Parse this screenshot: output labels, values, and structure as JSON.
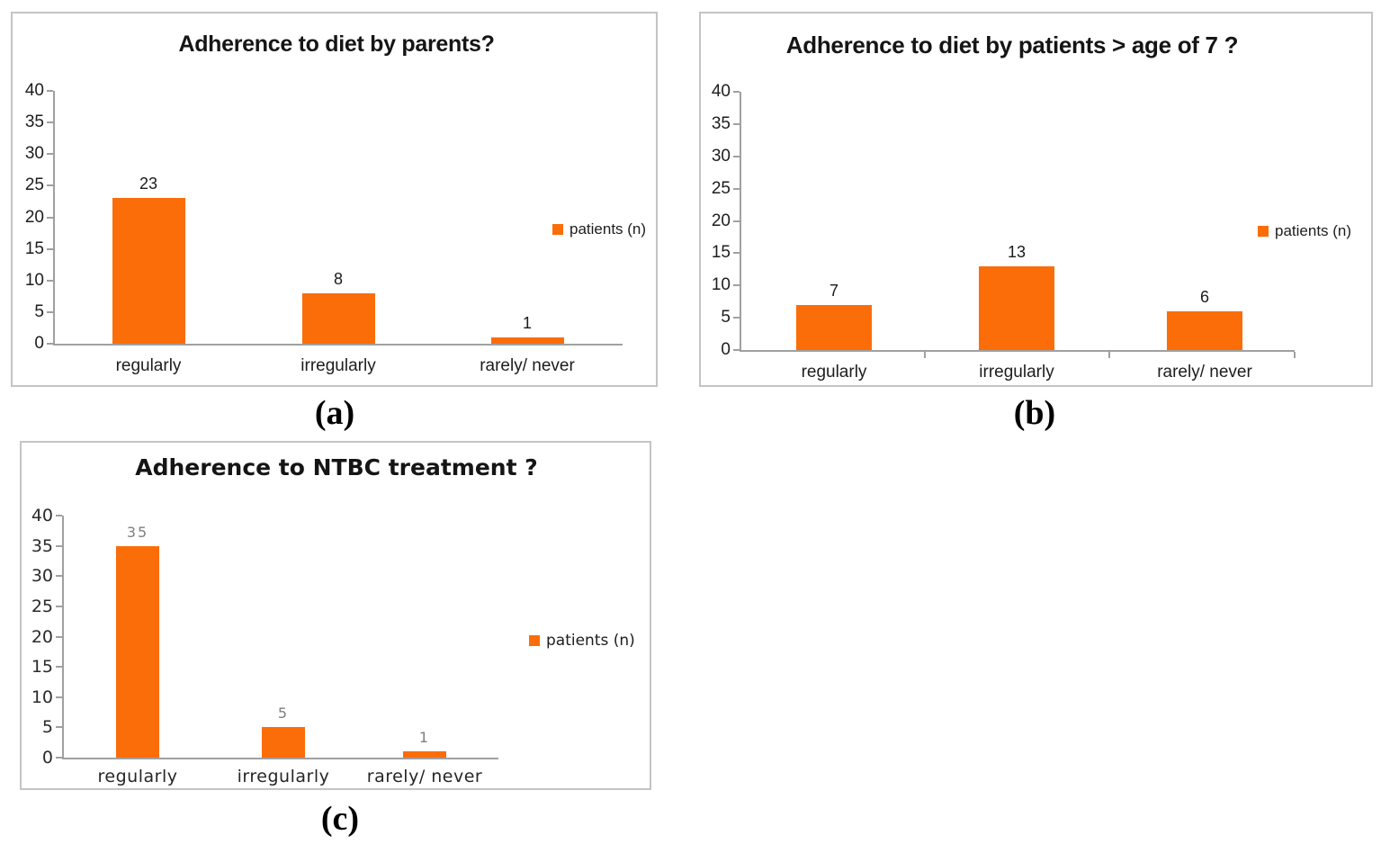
{
  "figure": {
    "accent_orange": "#FB6D09",
    "axis_gray": "#A0A0A0",
    "panel_border_gray": "#C4C4C4",
    "data_label_gray": "#7F7F7F"
  },
  "chart_data": [
    {
      "type": "bar",
      "panel_label": "(a)",
      "title": "Adherence to diet by parents?",
      "categories": [
        "regularly",
        "irregularly",
        "rarely/ never"
      ],
      "values": [
        23,
        8,
        1
      ],
      "legend_label": "patients (n)",
      "legend_position": "right",
      "xlabel": "",
      "ylabel": "",
      "ylim": [
        0,
        40
      ],
      "ytick_step": 5,
      "grid": false,
      "bar_color": "#FB6D09",
      "data_label_color": "#1A1A1A"
    },
    {
      "type": "bar",
      "panel_label": "(b)",
      "title": "Adherence to diet by patients > age of 7 ?",
      "categories": [
        "regularly",
        "irregularly",
        "rarely/ never"
      ],
      "values": [
        7,
        13,
        6
      ],
      "legend_label": "patients (n)",
      "legend_position": "right",
      "xlabel": "",
      "ylabel": "",
      "ylim": [
        0,
        40
      ],
      "ytick_step": 5,
      "grid": false,
      "bar_color": "#FB6D09",
      "data_label_color": "#1A1A1A"
    },
    {
      "type": "bar",
      "panel_label": "(c)",
      "title": "Adherence to NTBC treatment ?",
      "categories": [
        "regularly",
        "irregularly",
        "rarely/ never"
      ],
      "values": [
        35,
        5,
        1
      ],
      "legend_label": "patients (n)",
      "legend_position": "right",
      "xlabel": "",
      "ylabel": "",
      "ylim": [
        0,
        40
      ],
      "ytick_step": 5,
      "grid": false,
      "bar_color": "#FB6D09",
      "data_label_color": "#7F7F7F"
    }
  ]
}
